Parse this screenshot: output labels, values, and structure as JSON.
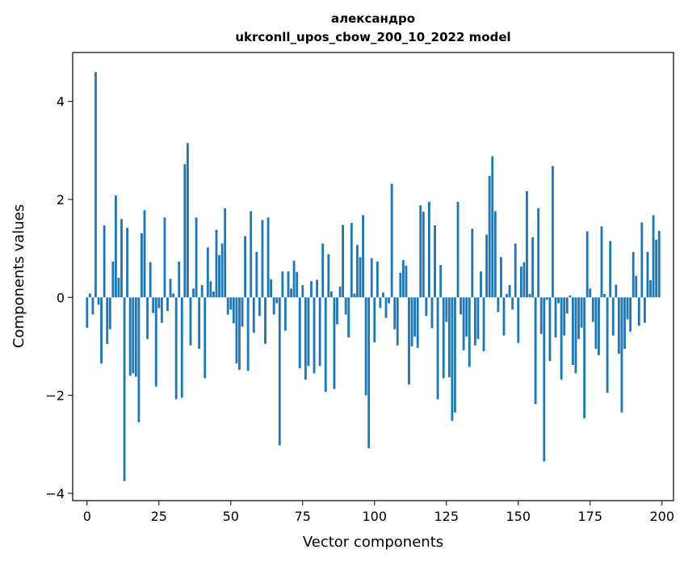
{
  "chart_data": {
    "type": "bar",
    "title": "александро",
    "subtitle": "ukrconll_upos_cbow_200_10_2022 model",
    "xlabel": "Vector components",
    "ylabel": "Components values",
    "xlim": [
      -5,
      204
    ],
    "ylim": [
      -4.15,
      5.0
    ],
    "xticks": [
      0,
      25,
      50,
      75,
      100,
      125,
      150,
      175,
      200
    ],
    "xtick_labels": [
      "0",
      "25",
      "50",
      "75",
      "100",
      "125",
      "150",
      "175",
      "200"
    ],
    "yticks": [
      -4,
      -2,
      0,
      2,
      4
    ],
    "ytick_labels": [
      "−4",
      "−2",
      "0",
      "2",
      "4"
    ],
    "grid": false,
    "bar_color": "#1f77b4",
    "values": [
      -0.62,
      0.08,
      -0.35,
      4.6,
      -0.15,
      -1.35,
      1.47,
      -0.95,
      -0.65,
      0.73,
      2.08,
      0.4,
      1.6,
      -3.75,
      1.42,
      -1.6,
      -1.55,
      -1.62,
      -2.55,
      1.31,
      1.78,
      -0.85,
      0.72,
      -0.32,
      -1.82,
      -0.22,
      -0.52,
      1.63,
      -0.28,
      0.38,
      0.08,
      -2.08,
      0.73,
      -2.05,
      2.72,
      3.15,
      -0.98,
      0.18,
      1.63,
      -1.05,
      0.25,
      -1.65,
      1.02,
      0.33,
      0.12,
      1.38,
      0.86,
      1.1,
      1.82,
      -0.35,
      -0.25,
      -0.53,
      -1.35,
      -1.48,
      -0.6,
      1.25,
      -1.5,
      1.76,
      -0.72,
      0.93,
      -0.38,
      1.58,
      -0.95,
      1.63,
      0.37,
      -0.35,
      -0.12,
      -3.02,
      0.53,
      -0.68,
      0.53,
      0.18,
      0.75,
      0.52,
      -1.45,
      0.25,
      -1.68,
      -1.4,
      0.33,
      -1.55,
      0.36,
      -1.4,
      1.1,
      -1.93,
      0.88,
      0.12,
      -1.87,
      -0.55,
      0.22,
      1.48,
      -0.35,
      -0.82,
      1.52,
      0.08,
      1.07,
      0.82,
      1.68,
      -2.0,
      -3.08,
      0.8,
      -0.92,
      0.73,
      -0.22,
      0.1,
      -0.42,
      -0.12,
      2.32,
      -0.65,
      -0.98,
      0.5,
      0.76,
      0.65,
      -1.78,
      -1.0,
      -0.8,
      -1.03,
      1.88,
      1.75,
      -0.38,
      1.95,
      -0.63,
      1.47,
      -2.08,
      0.66,
      -1.65,
      -0.5,
      -1.63,
      -2.52,
      -2.35,
      1.95,
      -0.35,
      -1.08,
      -0.8,
      -1.42,
      1.4,
      -0.98,
      -0.85,
      0.53,
      -1.1,
      1.28,
      2.48,
      2.88,
      1.76,
      -0.3,
      0.82,
      -0.78,
      0.07,
      0.25,
      -0.25,
      1.1,
      -0.93,
      0.63,
      0.72,
      2.17,
      0.07,
      1.23,
      -2.18,
      1.82,
      -0.75,
      -3.35,
      -0.05,
      -1.3,
      2.68,
      -0.82,
      -0.12,
      -1.68,
      -0.78,
      -0.33,
      0.04,
      -1.38,
      -1.55,
      -0.85,
      -0.62,
      -2.47,
      1.35,
      0.18,
      -0.5,
      -1.05,
      -1.18,
      1.45,
      0.07,
      -1.95,
      1.15,
      -0.78,
      0.26,
      -1.15,
      -2.35,
      -1.05,
      -0.45,
      -0.7,
      0.93,
      0.44,
      -0.58,
      1.53,
      -0.52,
      0.93,
      0.35,
      1.68,
      1.18,
      1.36
    ]
  }
}
